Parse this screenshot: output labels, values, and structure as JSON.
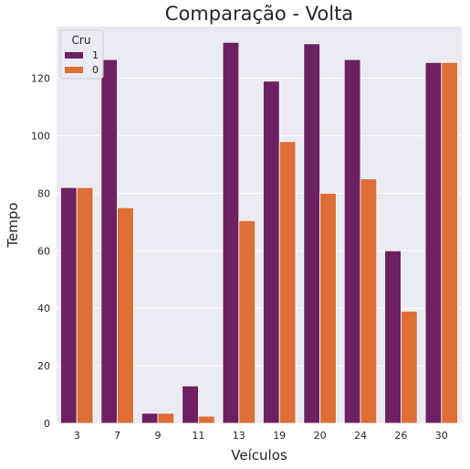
{
  "chart_data": {
    "type": "bar",
    "title": "Comparação - Volta",
    "xlabel": "Veículos",
    "ylabel": "Tempo",
    "categories": [
      "3",
      "7",
      "9",
      "11",
      "13",
      "19",
      "20",
      "24",
      "26",
      "30"
    ],
    "series": [
      {
        "name": "1",
        "values": [
          82,
          126.5,
          3.5,
          13,
          132.5,
          119,
          132,
          126.5,
          60,
          125.5
        ]
      },
      {
        "name": "0",
        "values": [
          82,
          75,
          3.5,
          2.5,
          70.5,
          98,
          80,
          85,
          39,
          125.5
        ]
      }
    ],
    "ylim": [
      0,
      138
    ],
    "yticks": [
      0,
      20,
      40,
      60,
      80,
      100,
      120
    ],
    "grid": true,
    "legend": {
      "title": "Cru",
      "placement": "top-left"
    },
    "colors": {
      "series_1": "#6d2162",
      "series_0": "#dc6e36",
      "background": "#eaeaf2",
      "grid": "#ffffff"
    }
  }
}
